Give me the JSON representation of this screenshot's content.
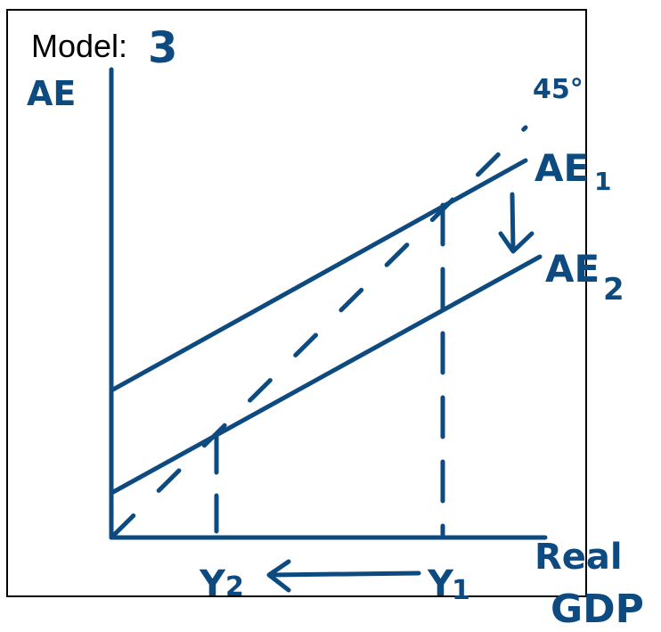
{
  "model": {
    "label": "Model:",
    "number": "3"
  },
  "axes": {
    "y_label": "AE",
    "x_label_line1": "Real",
    "x_label_line2": "GDP"
  },
  "lines": {
    "reference": "45°",
    "ae1": "AE",
    "ae1_sub": "1",
    "ae2": "AE",
    "ae2_sub": "2"
  },
  "x_marks": {
    "y2": "Y",
    "y2_sub": "2",
    "y1": "Y",
    "y1_sub": "1"
  },
  "colors": {
    "ink": "#0d4a80",
    "frame": "#000000",
    "background": "#ffffff"
  }
}
